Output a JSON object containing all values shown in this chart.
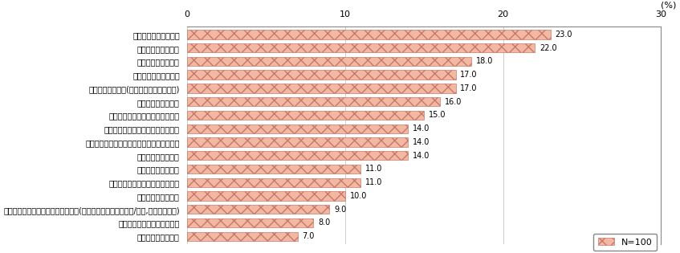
{
  "categories": [
    "各種調査・統計データ",
    "防災分野の各種情報",
    "観光分野の各種情報",
    "地図・地形・地質情報",
    "各種公共施設情報(所在地・利用案内など)",
    "防犯分野の各種情報",
    "医療・介護・福祉分野の各種情報",
    "各種の土地利用・インフラ関連情報",
    "行政サービス・市民サービス分野の各種情報",
    "交通分野の各種情報",
    "教育分野の各種情報",
    "環境・エネルギー分野の各種情報",
    "産業分野の各種情報",
    "各種民間施設の所在・変更等の情報(届け出・許可による開業/廃業,工事等の情報)",
    "地域コミュニティ分野の情報",
    "雇用分野の各種情報"
  ],
  "values": [
    23.0,
    22.0,
    18.0,
    17.0,
    17.0,
    16.0,
    15.0,
    14.0,
    14.0,
    14.0,
    11.0,
    11.0,
    10.0,
    9.0,
    8.0,
    7.0
  ],
  "bar_color_face": "#f2b8a2",
  "bar_color_edge": "#c8786a",
  "bar_hatch": "xx",
  "xlim": [
    0,
    30
  ],
  "xticks": [
    0,
    10,
    20,
    30
  ],
  "xlabel": "(%)",
  "background_color": "#ffffff",
  "legend_label": "N=100",
  "value_label_fontsize": 7,
  "category_fontsize": 7,
  "axis_fontsize": 8,
  "bar_height": 0.68
}
